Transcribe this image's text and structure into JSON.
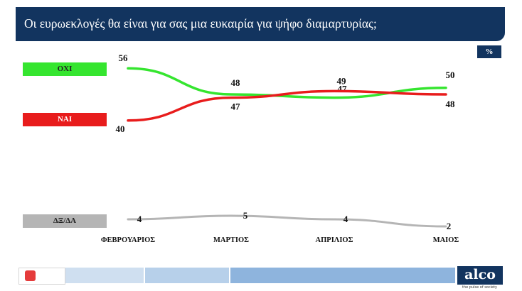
{
  "header": {
    "title": "Οι ευρωεκλογές θα είναι για σας μια ευκαιρία για ψήφο διαμαρτυρίας;",
    "unit": "%"
  },
  "chart_data": {
    "type": "line",
    "categories": [
      "ΦΕΒΡΟΥΑΡΙΟΣ",
      "ΜΑΡΤΙΟΣ",
      "ΑΠΡΙΛΙΟΣ",
      "ΜΑΙΟΣ"
    ],
    "series": [
      {
        "name": "ΟΧΙ",
        "values": [
          56,
          48,
          47,
          50
        ],
        "color": "#35e52f"
      },
      {
        "name": "ΝΑΙ",
        "values": [
          40,
          47,
          49,
          48
        ],
        "color": "#e81c1c"
      },
      {
        "name": "ΔΞ/ΔΑ",
        "values": [
          4,
          5,
          4,
          2
        ],
        "color": "#b5b5b5"
      }
    ],
    "grid": false,
    "legend": "left"
  },
  "brand": {
    "logo_text": "alco",
    "tagline": "the pulse of society"
  }
}
